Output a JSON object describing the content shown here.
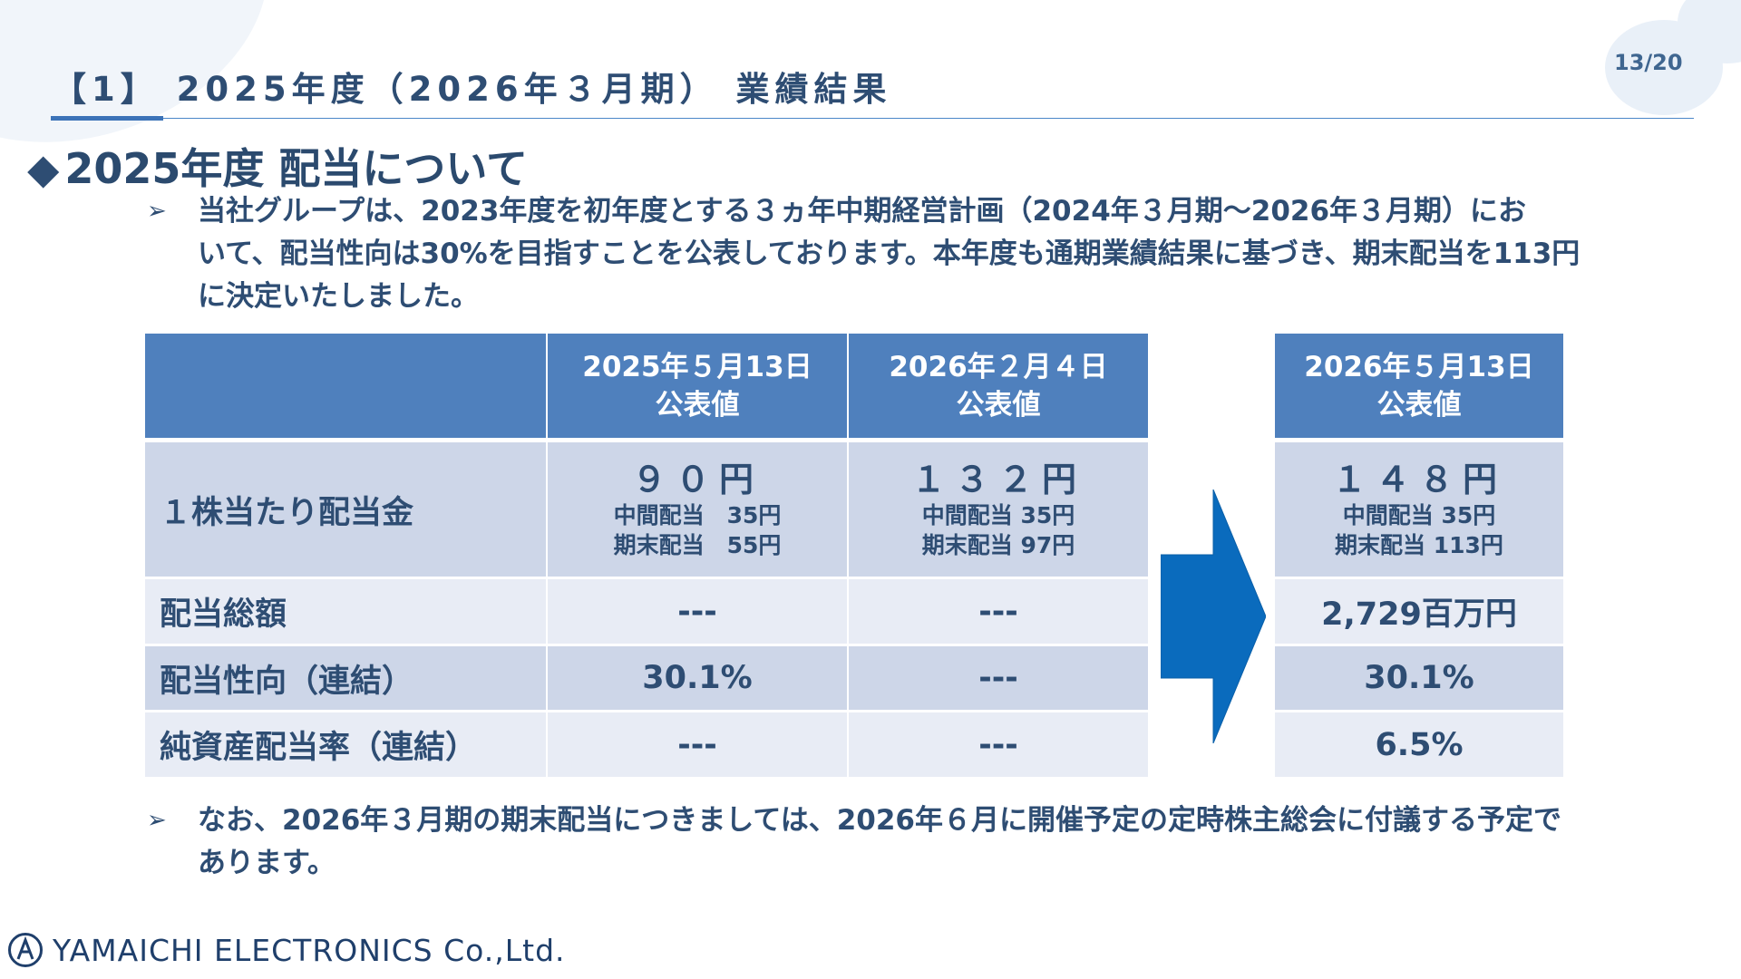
{
  "header": {
    "title": "【1】 2025年度（2026年３月期） 業績結果",
    "page_number": "13/20"
  },
  "section": {
    "marker": "◆",
    "title": "2025年度 配当について"
  },
  "bullets": [
    {
      "marker": "➢",
      "lines": [
        "当社グループは、2023年度を初年度とする３ヵ年中期経営計画（2024年３月期～2026年３月期）にお",
        "いて、配当性向は30%を目指すことを公表しております。本年度も通期業績結果に基づき、期末配当を113円",
        "に決定いたしました。"
      ]
    },
    {
      "marker": "➢",
      "lines": [
        "なお、2026年３月期の期末配当につきましては、2026年６月に開催予定の定時株主総会に付議する予定で",
        "あります。"
      ]
    }
  ],
  "table": {
    "columns": [
      {
        "line1": "2025年５月13日",
        "line2": "公表値"
      },
      {
        "line1": "2026年２月４日",
        "line2": "公表値"
      },
      {
        "line1": "2026年５月13日",
        "line2": "公表値"
      }
    ],
    "rows": {
      "dividend_per_share": {
        "label": "１株当たり配当金",
        "cells": [
          {
            "total": "９０円",
            "interim": "中間配当　35円",
            "year_end": "期末配当　55円"
          },
          {
            "total": "１３２円",
            "interim": "中間配当 35円",
            "year_end": "期末配当 97円"
          },
          {
            "total": "１４８円",
            "interim": "中間配当 35円",
            "year_end": "期末配当 113円"
          }
        ]
      },
      "total_dividend": {
        "label": "配当総額",
        "cells": [
          "---",
          "---",
          "2,729百万円"
        ]
      },
      "payout_ratio": {
        "label": "配当性向（連結）",
        "cells": [
          "30.1%",
          "---",
          "30.1%"
        ]
      },
      "doe": {
        "label": "純資産配当率（連結）",
        "cells": [
          "---",
          "---",
          "6.5%"
        ]
      }
    }
  },
  "arrow_icon": "right-arrow-icon",
  "colors": {
    "header_fill": "#4f80bd",
    "row_dark": "#cdd6e8",
    "row_light": "#e8ecf5",
    "arrow": "#0a6bbd",
    "text": "#2e4d73"
  },
  "footer": {
    "company": "YAMAICHI ELECTRONICS Co.,Ltd."
  }
}
